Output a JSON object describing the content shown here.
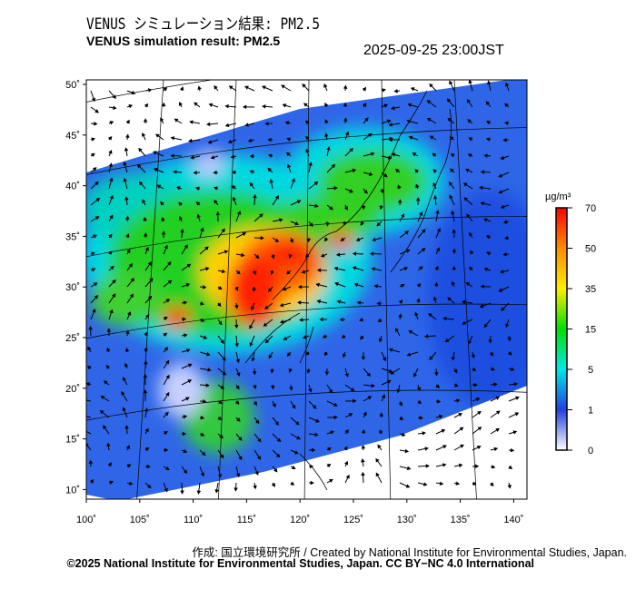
{
  "header": {
    "title_jp": "VENUS シミュレーション結果: PM2.5",
    "title_en": "VENUS simulation result: PM2.5",
    "timestamp": "2025-09-25 23:00JST"
  },
  "map": {
    "lat_ticks": [
      "50˚",
      "45˚",
      "40˚",
      "35˚",
      "30˚",
      "25˚",
      "20˚",
      "15˚",
      "10˚"
    ],
    "lon_ticks": [
      "100˚",
      "105˚",
      "110˚",
      "115˚",
      "120˚",
      "125˚",
      "130˚",
      "135˚",
      "140˚"
    ]
  },
  "colorbar": {
    "unit": "µg/m³",
    "ticks": [
      "70",
      "50",
      "35",
      "15",
      "5",
      "1",
      "0"
    ],
    "colors": [
      "#ff0000",
      "#ff8c00",
      "#ffee00",
      "#00e000",
      "#00e8e8",
      "#1e5aff",
      "#ffffff"
    ]
  },
  "footer": {
    "credit": "作成: 国立環境研究所 / Created by National Institute for Environmental Studies, Japan.",
    "license": "©2025 National Institute for Environmental Studies, Japan. CC BY−NC 4.0 International"
  }
}
